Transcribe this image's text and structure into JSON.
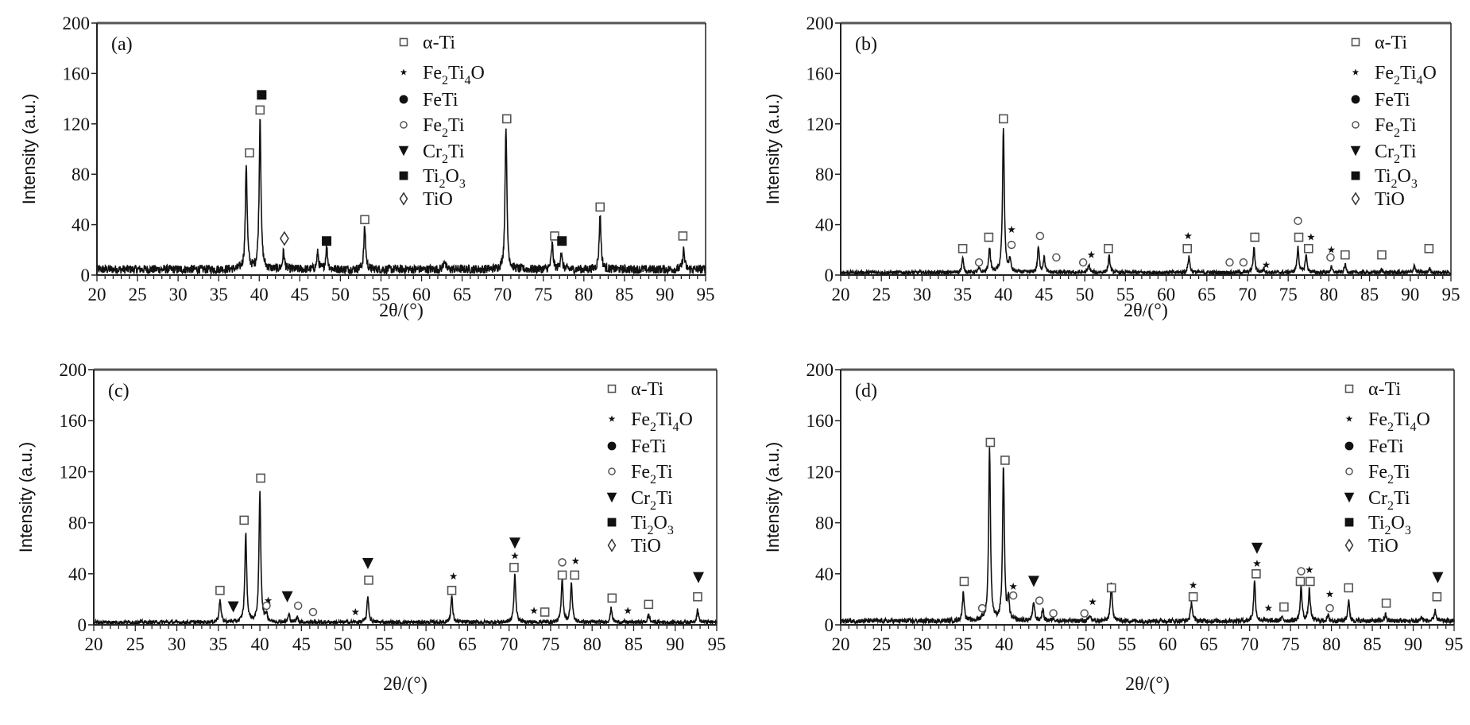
{
  "chart_data": [
    {
      "type": "line",
      "panel_label": "(a)",
      "xlabel": "2θ/(°)",
      "ylabel": "Intensity (a.u.)",
      "xlim": [
        20,
        95
      ],
      "ylim": [
        0,
        200
      ],
      "xticks": [
        20,
        25,
        30,
        35,
        40,
        45,
        50,
        55,
        60,
        65,
        70,
        75,
        80,
        85,
        90,
        95
      ],
      "yticks": [
        0,
        40,
        80,
        120,
        160,
        200
      ],
      "legend_position": "top-center",
      "baseline": 4.5,
      "noise_amplitude": 3.5,
      "peaks": [
        [
          38.4,
          84
        ],
        [
          40.1,
          122
        ],
        [
          43.0,
          14
        ],
        [
          47.2,
          13
        ],
        [
          48.3,
          18
        ],
        [
          53.0,
          34
        ],
        [
          62.8,
          8
        ],
        [
          70.4,
          114
        ],
        [
          76.1,
          20
        ],
        [
          77.2,
          14
        ],
        [
          82.0,
          44
        ],
        [
          92.3,
          16
        ]
      ],
      "markers": [
        [
          "alpha-Ti",
          38.8,
          97
        ],
        [
          "Ti2O3",
          40.3,
          143
        ],
        [
          "alpha-Ti",
          40.1,
          131
        ],
        [
          "TiO",
          43.1,
          29
        ],
        [
          "Ti2O3",
          48.3,
          27
        ],
        [
          "alpha-Ti",
          53.0,
          44
        ],
        [
          "alpha-Ti",
          70.5,
          124
        ],
        [
          "alpha-Ti",
          76.4,
          31
        ],
        [
          "Ti2O3",
          77.3,
          27
        ],
        [
          "alpha-Ti",
          82.0,
          54
        ],
        [
          "alpha-Ti",
          92.2,
          31
        ]
      ]
    },
    {
      "type": "line",
      "panel_label": "(b)",
      "xlabel": "2θ/(°)",
      "ylabel": "Intensity (a.u.)",
      "xlim": [
        20,
        95
      ],
      "ylim": [
        0,
        200
      ],
      "xticks": [
        20,
        25,
        30,
        35,
        40,
        45,
        50,
        55,
        60,
        65,
        70,
        75,
        80,
        85,
        90,
        95
      ],
      "yticks": [
        0,
        40,
        80,
        120,
        160,
        200
      ],
      "legend_position": "top-right",
      "baseline": 2,
      "noise_amplitude": 1.5,
      "peaks": [
        [
          35.0,
          11
        ],
        [
          37.0,
          3
        ],
        [
          38.3,
          20
        ],
        [
          40.0,
          115
        ],
        [
          40.8,
          10
        ],
        [
          44.3,
          20
        ],
        [
          45.0,
          12
        ],
        [
          50.5,
          6
        ],
        [
          53.0,
          13
        ],
        [
          62.8,
          13
        ],
        [
          70.8,
          20
        ],
        [
          72.0,
          3
        ],
        [
          76.2,
          20
        ],
        [
          77.2,
          14
        ],
        [
          80.3,
          4
        ],
        [
          82.0,
          6
        ],
        [
          86.5,
          2
        ],
        [
          90.5,
          6
        ],
        [
          92.4,
          3
        ]
      ],
      "markers": [
        [
          "alpha-Ti",
          35.0,
          21
        ],
        [
          "Fe2Ti",
          37.0,
          10
        ],
        [
          "alpha-Ti",
          38.2,
          30
        ],
        [
          "alpha-Ti",
          40.0,
          124
        ],
        [
          "Fe2Ti4O",
          41.0,
          36
        ],
        [
          "Fe2Ti",
          41.0,
          24
        ],
        [
          "Fe2Ti",
          44.5,
          31
        ],
        [
          "Fe2Ti",
          46.5,
          14
        ],
        [
          "Fe2Ti",
          49.8,
          10
        ],
        [
          "Fe2Ti4O",
          50.8,
          16
        ],
        [
          "alpha-Ti",
          52.9,
          21
        ],
        [
          "Fe2Ti4O",
          62.7,
          31
        ],
        [
          "alpha-Ti",
          62.6,
          21
        ],
        [
          "Fe2Ti",
          67.8,
          10
        ],
        [
          "Fe2Ti",
          69.5,
          10
        ],
        [
          "Fe2Ti4O",
          71.0,
          31
        ],
        [
          "alpha-Ti",
          70.9,
          30
        ],
        [
          "Fe2Ti4O",
          72.3,
          8
        ],
        [
          "Fe2Ti",
          76.2,
          43
        ],
        [
          "alpha-Ti",
          76.3,
          30
        ],
        [
          "Fe2Ti4O",
          77.8,
          30
        ],
        [
          "alpha-Ti",
          77.5,
          21
        ],
        [
          "Fe2Ti4O",
          80.3,
          20
        ],
        [
          "Fe2Ti",
          80.2,
          14
        ],
        [
          "alpha-Ti",
          82.0,
          16
        ],
        [
          "alpha-Ti",
          86.5,
          16
        ],
        [
          "alpha-Ti",
          92.3,
          21
        ]
      ]
    },
    {
      "type": "line",
      "panel_label": "(c)",
      "xlabel": "2θ/(°)",
      "ylabel": "Intensity (a.u.)",
      "xlim": [
        20,
        95
      ],
      "ylim": [
        0,
        200
      ],
      "xticks": [
        20,
        25,
        30,
        35,
        40,
        45,
        50,
        55,
        60,
        65,
        70,
        75,
        80,
        85,
        90,
        95
      ],
      "yticks": [
        0,
        40,
        80,
        120,
        160,
        200
      ],
      "legend_position": "top-right",
      "baseline": 2,
      "noise_amplitude": 1.5,
      "peaks": [
        [
          35.2,
          18
        ],
        [
          38.3,
          70
        ],
        [
          40.0,
          101
        ],
        [
          40.8,
          6
        ],
        [
          43.5,
          6
        ],
        [
          44.5,
          4
        ],
        [
          53.0,
          20
        ],
        [
          63.1,
          20
        ],
        [
          70.7,
          38
        ],
        [
          76.4,
          34
        ],
        [
          77.5,
          31
        ],
        [
          82.3,
          11
        ],
        [
          86.8,
          6
        ],
        [
          92.7,
          10
        ]
      ],
      "markers": [
        [
          "alpha-Ti",
          35.2,
          27
        ],
        [
          "Cr2Ti",
          36.8,
          14
        ],
        [
          "alpha-Ti",
          38.1,
          82
        ],
        [
          "alpha-Ti",
          40.1,
          115
        ],
        [
          "Fe2Ti4O",
          41.0,
          19
        ],
        [
          "Fe2Ti",
          40.8,
          15
        ],
        [
          "Cr2Ti",
          43.3,
          22
        ],
        [
          "Fe2Ti",
          44.6,
          15
        ],
        [
          "Fe2Ti",
          46.4,
          10
        ],
        [
          "Fe2Ti4O",
          51.5,
          10
        ],
        [
          "Cr2Ti",
          53.0,
          48
        ],
        [
          "alpha-Ti",
          53.1,
          35
        ],
        [
          "Fe2Ti4O",
          63.3,
          38
        ],
        [
          "alpha-Ti",
          63.1,
          27
        ],
        [
          "Cr2Ti",
          70.7,
          64
        ],
        [
          "Fe2Ti4O",
          70.7,
          54
        ],
        [
          "alpha-Ti",
          70.6,
          45
        ],
        [
          "Fe2Ti4O",
          73.0,
          11
        ],
        [
          "alpha-Ti",
          74.3,
          10
        ],
        [
          "Fe2Ti",
          76.4,
          49
        ],
        [
          "alpha-Ti",
          76.4,
          39
        ],
        [
          "Fe2Ti4O",
          78.0,
          50
        ],
        [
          "alpha-Ti",
          77.9,
          39
        ],
        [
          "alpha-Ti",
          82.4,
          21
        ],
        [
          "Fe2Ti4O",
          84.3,
          11
        ],
        [
          "alpha-Ti",
          86.8,
          16
        ],
        [
          "Cr2Ti",
          92.8,
          37
        ],
        [
          "alpha-Ti",
          92.7,
          22
        ]
      ]
    },
    {
      "type": "line",
      "panel_label": "(d)",
      "xlabel": "2θ/(°)",
      "ylabel": "Intensity (a.u.)",
      "xlim": [
        20,
        95
      ],
      "ylim": [
        0,
        200
      ],
      "xticks": [
        20,
        25,
        30,
        35,
        40,
        45,
        50,
        55,
        60,
        65,
        70,
        75,
        80,
        85,
        90,
        95
      ],
      "yticks": [
        0,
        40,
        80,
        120,
        160,
        200
      ],
      "legend_position": "top-right",
      "baseline": 3,
      "noise_amplitude": 1.8,
      "peaks": [
        [
          35.0,
          23
        ],
        [
          37.3,
          2
        ],
        [
          38.2,
          136
        ],
        [
          39.9,
          120
        ],
        [
          40.5,
          16
        ],
        [
          43.6,
          15
        ],
        [
          44.7,
          9
        ],
        [
          46.0,
          3
        ],
        [
          50.5,
          4
        ],
        [
          53.1,
          30
        ],
        [
          62.9,
          15
        ],
        [
          70.6,
          31
        ],
        [
          74.0,
          3
        ],
        [
          76.3,
          27
        ],
        [
          77.3,
          25
        ],
        [
          79.6,
          4
        ],
        [
          82.1,
          16
        ],
        [
          86.6,
          5
        ],
        [
          91.0,
          3
        ],
        [
          92.7,
          8
        ]
      ],
      "markers": [
        [
          "alpha-Ti",
          35.1,
          34
        ],
        [
          "Fe2Ti",
          37.3,
          13
        ],
        [
          "alpha-Ti",
          38.3,
          143
        ],
        [
          "alpha-Ti",
          40.1,
          129
        ],
        [
          "Fe2Ti4O",
          41.1,
          30
        ],
        [
          "Fe2Ti",
          41.1,
          23
        ],
        [
          "Cr2Ti",
          43.6,
          34
        ],
        [
          "Fe2Ti",
          44.3,
          19
        ],
        [
          "Fe2Ti",
          46.0,
          9
        ],
        [
          "Fe2Ti",
          49.8,
          9
        ],
        [
          "Fe2Ti4O",
          50.8,
          18
        ],
        [
          "alpha-Ti",
          53.1,
          29
        ],
        [
          "Fe2Ti4O",
          63.1,
          31
        ],
        [
          "alpha-Ti",
          63.1,
          22
        ],
        [
          "Cr2Ti",
          70.9,
          60
        ],
        [
          "Fe2Ti4O",
          70.9,
          48
        ],
        [
          "alpha-Ti",
          70.8,
          40
        ],
        [
          "Fe2Ti4O",
          72.3,
          13
        ],
        [
          "alpha-Ti",
          74.2,
          14
        ],
        [
          "Fe2Ti",
          76.3,
          42
        ],
        [
          "alpha-Ti",
          76.2,
          34
        ],
        [
          "Fe2Ti4O",
          77.3,
          43
        ],
        [
          "alpha-Ti",
          77.4,
          34
        ],
        [
          "Fe2Ti4O",
          79.8,
          24
        ],
        [
          "Fe2Ti",
          79.8,
          13
        ],
        [
          "alpha-Ti",
          82.1,
          29
        ],
        [
          "alpha-Ti",
          86.7,
          17
        ],
        [
          "Cr2Ti",
          93.0,
          37
        ],
        [
          "alpha-Ti",
          92.9,
          22
        ]
      ]
    }
  ],
  "legend": [
    {
      "key": "alpha-Ti",
      "label": "α-Ti",
      "symbol": "open-square"
    },
    {
      "key": "Fe2Ti4O",
      "label": "Fe2Ti4O",
      "symbol": "star"
    },
    {
      "key": "FeTi",
      "label": "FeTi",
      "symbol": "filled-circle"
    },
    {
      "key": "Fe2Ti",
      "label": "Fe2Ti",
      "symbol": "open-circle"
    },
    {
      "key": "Cr2Ti",
      "label": "Cr2Ti",
      "symbol": "filled-triangle-down"
    },
    {
      "key": "Ti2O3",
      "label": "Ti2O3",
      "symbol": "filled-square"
    },
    {
      "key": "TiO",
      "label": "TiO",
      "symbol": "open-diamond"
    }
  ],
  "colors": {
    "line": "#111111",
    "frame": "#222222",
    "top_frame": "#555555",
    "open_marker": "#555555"
  }
}
